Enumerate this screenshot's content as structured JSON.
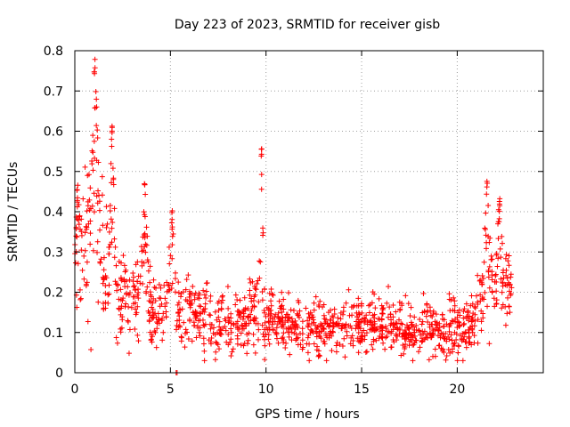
{
  "chart_data": {
    "type": "scatter",
    "title": "Day 223 of 2023, SRMTID for receiver gisb",
    "xlabel": "GPS time / hours",
    "ylabel": "SRMTID / TECUs",
    "xlim": [
      0,
      24.5
    ],
    "ylim": [
      0,
      0.8
    ],
    "xticks": [
      0,
      5,
      10,
      15,
      20
    ],
    "xtick_labels": [
      "0",
      "5",
      "10",
      "15",
      "20"
    ],
    "yticks": [
      0,
      0.1,
      0.2,
      0.3,
      0.4,
      0.5,
      0.6,
      0.7,
      0.8
    ],
    "ytick_labels": [
      "0",
      "0.1",
      "0.2",
      "0.3",
      "0.4",
      "0.5",
      "0.6",
      "0.7",
      "0.8"
    ],
    "grid": true,
    "marker": "plus",
    "color": "#ff0000",
    "profile": [
      [
        0.0,
        0.25,
        0.07
      ],
      [
        0.5,
        0.33,
        0.1
      ],
      [
        1.0,
        0.38,
        0.16
      ],
      [
        1.5,
        0.25,
        0.1
      ],
      [
        2.0,
        0.22,
        0.1
      ],
      [
        2.5,
        0.17,
        0.06
      ],
      [
        3.0,
        0.17,
        0.06
      ],
      [
        3.5,
        0.2,
        0.08
      ],
      [
        4.0,
        0.17,
        0.06
      ],
      [
        4.5,
        0.15,
        0.05
      ],
      [
        5.0,
        0.2,
        0.08
      ],
      [
        5.5,
        0.15,
        0.05
      ],
      [
        6.0,
        0.14,
        0.05
      ],
      [
        6.5,
        0.13,
        0.05
      ],
      [
        7.0,
        0.13,
        0.05
      ],
      [
        7.5,
        0.12,
        0.05
      ],
      [
        8.0,
        0.12,
        0.05
      ],
      [
        8.5,
        0.13,
        0.05
      ],
      [
        9.0,
        0.13,
        0.05
      ],
      [
        9.5,
        0.17,
        0.06
      ],
      [
        10.0,
        0.14,
        0.05
      ],
      [
        10.5,
        0.13,
        0.04
      ],
      [
        11.0,
        0.12,
        0.04
      ],
      [
        11.5,
        0.11,
        0.04
      ],
      [
        12.0,
        0.11,
        0.04
      ],
      [
        12.5,
        0.11,
        0.04
      ],
      [
        13.0,
        0.11,
        0.04
      ],
      [
        13.5,
        0.1,
        0.04
      ],
      [
        14.0,
        0.12,
        0.04
      ],
      [
        14.5,
        0.13,
        0.05
      ],
      [
        15.0,
        0.12,
        0.04
      ],
      [
        15.5,
        0.12,
        0.04
      ],
      [
        16.0,
        0.12,
        0.04
      ],
      [
        16.5,
        0.12,
        0.04
      ],
      [
        17.0,
        0.11,
        0.04
      ],
      [
        17.5,
        0.1,
        0.04
      ],
      [
        18.0,
        0.11,
        0.04
      ],
      [
        18.5,
        0.11,
        0.04
      ],
      [
        19.0,
        0.1,
        0.04
      ],
      [
        19.5,
        0.1,
        0.04
      ],
      [
        20.0,
        0.1,
        0.04
      ],
      [
        20.5,
        0.11,
        0.04
      ],
      [
        21.0,
        0.15,
        0.05
      ],
      [
        21.5,
        0.22,
        0.07
      ],
      [
        22.0,
        0.22,
        0.07
      ],
      [
        22.5,
        0.22,
        0.06
      ],
      [
        22.8,
        0.22,
        0.06
      ]
    ],
    "spikes": [
      {
        "x": 0.15,
        "peak": 0.47,
        "width": 0.3
      },
      {
        "x": 1.05,
        "peak": 0.78,
        "width": 0.35
      },
      {
        "x": 1.95,
        "peak": 0.62,
        "width": 0.25
      },
      {
        "x": 3.65,
        "peak": 0.47,
        "width": 0.3
      },
      {
        "x": 5.1,
        "peak": 0.41,
        "width": 0.25
      },
      {
        "x": 9.75,
        "peak": 0.56,
        "width": 0.2
      },
      {
        "x": 21.55,
        "peak": 0.48,
        "width": 0.3
      },
      {
        "x": 22.2,
        "peak": 0.45,
        "width": 0.25
      }
    ],
    "outliers": [
      [
        5.3,
        0.0
      ],
      [
        5.35,
        0.0
      ],
      [
        12.2,
        0.05
      ],
      [
        20.3,
        0.03
      ]
    ],
    "x_start": 0.0,
    "x_end": 22.85,
    "n_points": 1400
  }
}
